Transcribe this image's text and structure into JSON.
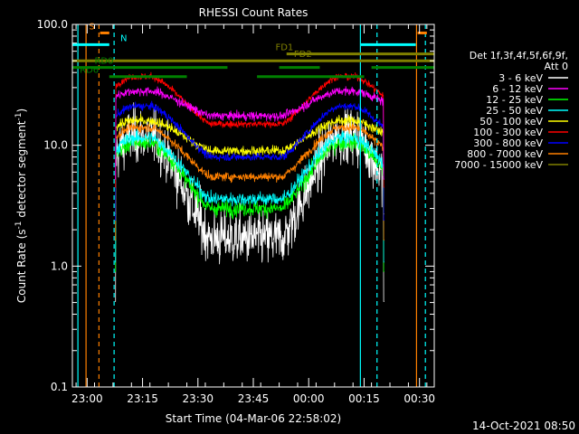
{
  "chart_data": {
    "type": "line",
    "title": "RHESSI Count Rates",
    "xlabel": "Start Time (04-Mar-06 22:58:02)",
    "ylabel_parts": [
      "Count Rate (s",
      "-1",
      " detector segment",
      "-1",
      ")"
    ],
    "yscale": "log",
    "ylim": [
      0.1,
      100.0
    ],
    "xlim_min": [
      -2,
      96
    ],
    "x_unit_note": "minutes after 22:58:02",
    "x_ticks": [
      {
        "label": "23:00",
        "min": 2
      },
      {
        "label": "23:15",
        "min": 17
      },
      {
        "label": "23:30",
        "min": 32
      },
      {
        "label": "23:45",
        "min": 47
      },
      {
        "label": "00:00",
        "min": 62
      },
      {
        "label": "00:15",
        "min": 77
      },
      {
        "label": "00:30",
        "min": 92
      }
    ],
    "y_ticks": [
      {
        "label": "0.1",
        "v": 0.1
      },
      {
        "label": "1.0",
        "v": 1.0
      },
      {
        "label": "10.0",
        "v": 10.0
      },
      {
        "label": "100.0",
        "v": 100.0
      }
    ],
    "legend_header": [
      "Det 1f,3f,4f,5f,6f,9f,",
      "Att 0"
    ],
    "legend_placement": "right",
    "series": [
      {
        "name": "3 - 6 keV",
        "color": "#ffffff",
        "edge": 12,
        "min": 1.7,
        "noise": 0.55
      },
      {
        "name": "6 - 12 keV",
        "color": "#ff00ff",
        "edge": 28,
        "min": 17.5,
        "noise": 0.09
      },
      {
        "name": "12 - 25 keV",
        "color": "#00ff00",
        "edge": 10.5,
        "min": 3.0,
        "noise": 0.16
      },
      {
        "name": "25 - 50 keV",
        "color": "#00ffff",
        "edge": 11.5,
        "min": 3.6,
        "noise": 0.14
      },
      {
        "name": "50 - 100 keV",
        "color": "#ffff00",
        "edge": 16,
        "min": 9.0,
        "noise": 0.1
      },
      {
        "name": "100 - 300 keV",
        "color": "#ff0000",
        "edge": 37,
        "min": 15.0,
        "noise": 0.07
      },
      {
        "name": "300 - 800 keV",
        "color": "#0000ff",
        "edge": 21,
        "min": 8.0,
        "noise": 0.08
      },
      {
        "name": "800 - 7000 keV",
        "color": "#ff8000",
        "edge": 14,
        "min": 5.5,
        "noise": 0.09
      },
      {
        "name": "7000 - 15000 keV",
        "color": "#808000",
        "edge": 0,
        "min": 0,
        "noise": 0
      }
    ],
    "data_window_min": [
      9.5,
      82.5
    ],
    "first_lobe_peak_min": [
      15,
      20
    ],
    "second_lobe_peak_min": [
      69,
      75
    ],
    "min_time_min": 45,
    "flag_bars": [
      {
        "label": "S",
        "color": "#ff8000",
        "value": 85,
        "segments": [
          [
            5.5,
            8
          ]
        ],
        "dash_after": 8,
        "label_side": "left"
      },
      {
        "label": "N",
        "color": "#00ffff",
        "value": 68,
        "segments": [
          [
            -2,
            8
          ]
        ],
        "dash_after": null,
        "label_side": "right",
        "label_x_min": 11
      },
      {
        "label": "FD1",
        "color": "#808000",
        "value": 57,
        "segments": [
          [
            56,
            96
          ]
        ],
        "dash_after": null,
        "label_side": "left"
      },
      {
        "label": "FD2",
        "color": "#808000",
        "value": 50,
        "segments": [
          [
            -2,
            96
          ]
        ],
        "dash_after": null,
        "label_side": "right",
        "label_x_min": 58
      },
      {
        "label": "RD0",
        "color": "#008000",
        "value": 44,
        "segments": [
          [
            -2,
            40
          ],
          [
            54,
            65
          ],
          [
            79,
            96
          ]
        ],
        "dash_after": null,
        "label_side": "left",
        "label_x_min": 4
      },
      {
        "label": "RD6",
        "color": "#008000",
        "value": 37,
        "segments": [
          [
            8,
            29
          ],
          [
            48,
            77
          ]
        ],
        "dash_after": null,
        "label_side": "left",
        "label_x_min": 0
      }
    ],
    "extra_flag_bars": [
      {
        "color": "#00ffff",
        "value": 68,
        "segments": [
          [
            76,
            91
          ]
        ]
      },
      {
        "color": "#ff8000",
        "value": 85,
        "segments": [
          [
            91.5,
            94
          ]
        ]
      }
    ],
    "vertical_lines": [
      {
        "min": -0.5,
        "color": "#00ffff",
        "style": "solid"
      },
      {
        "min": 1.7,
        "color": "#ff8000",
        "style": "solid"
      },
      {
        "min": 5.2,
        "color": "#ff8000",
        "style": "dashed"
      },
      {
        "min": 9.3,
        "color": "#00ffff",
        "style": "dashed"
      },
      {
        "min": 76,
        "color": "#00ffff",
        "style": "solid"
      },
      {
        "min": 80.5,
        "color": "#00ffff",
        "style": "dashed"
      },
      {
        "min": 91.2,
        "color": "#ff8000",
        "style": "solid"
      },
      {
        "min": 93.6,
        "color": "#00ffff",
        "style": "dashed"
      }
    ]
  },
  "timestamp": "14-Oct-2021 08:50"
}
